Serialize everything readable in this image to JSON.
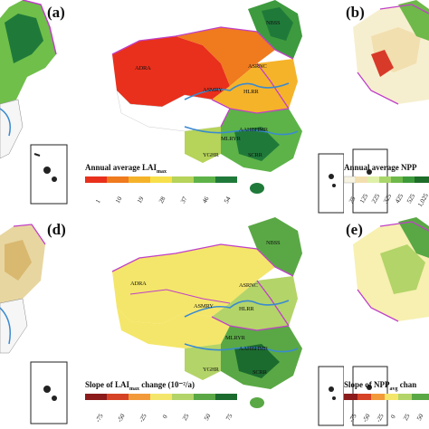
{
  "panels": {
    "a": {
      "label": "(a)"
    },
    "b": {
      "label": "(b)"
    },
    "d": {
      "label": "(d)"
    },
    "e": {
      "label": "(e)"
    }
  },
  "top_center": {
    "legend_title": "Annual average LAI",
    "legend_sub": "max",
    "ticks": [
      "1",
      "10",
      "19",
      "28",
      "37",
      "46",
      "54"
    ],
    "colors": [
      "#e8301c",
      "#f07a1e",
      "#f5b32a",
      "#f7e04a",
      "#b6d35a",
      "#5db348",
      "#1f7a3a"
    ],
    "regions": [
      "ADRA",
      "ASRNC",
      "ASMRY",
      "HLRR",
      "MLRYR",
      "NBSS",
      "AAHBHMR",
      "YGHR",
      "SCRR"
    ]
  },
  "top_right": {
    "legend_title": "Annual average NPP",
    "ticks": [
      "25",
      "125",
      "225",
      "325",
      "425",
      "525",
      "1,025"
    ],
    "colors": [
      "#f7f3e1",
      "#f2dfb0",
      "#dff0a8",
      "#a8d66a",
      "#6fb84a",
      "#3d9a3a",
      "#1e6e2a"
    ]
  },
  "bottom_center": {
    "legend_title": "Slope of LAI",
    "legend_sub": "max",
    "legend_rest": " change (10⁻²/a)",
    "ticks": [
      "-75",
      "-50",
      "-25",
      "0",
      "25",
      "50",
      "75"
    ],
    "colors": [
      "#8b1a1a",
      "#d64225",
      "#f29a3a",
      "#f4e66a",
      "#b3d468",
      "#5aa845",
      "#1b6b2e"
    ],
    "regions": [
      "ADRA",
      "ASRNC",
      "ASMRY",
      "HLRR",
      "MLRYR",
      "NBSS",
      "YGHR",
      "SCRR",
      "AAHBHMR"
    ]
  },
  "bottom_right": {
    "legend_title": "Slope of NPP",
    "legend_sub": "avg",
    "legend_rest": " chan",
    "ticks": [
      "-75",
      "-50",
      "-25",
      "0",
      "25",
      "50"
    ]
  },
  "colors": {
    "boundary": "#c040c8",
    "river": "#3a8ad0",
    "coast": "#222222"
  }
}
